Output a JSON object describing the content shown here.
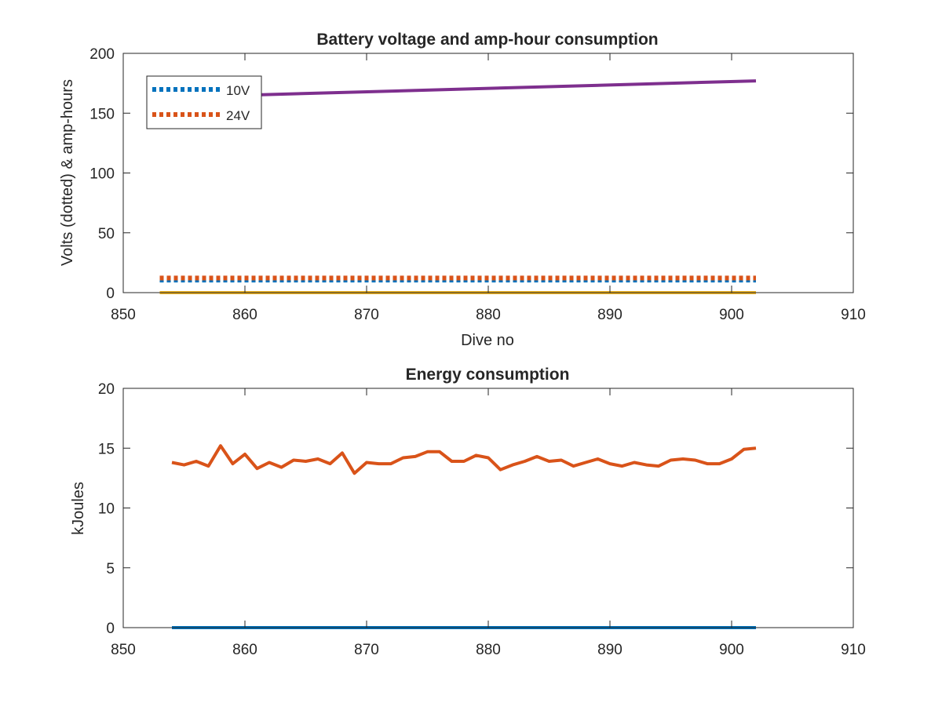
{
  "chart_data": [
    {
      "type": "line",
      "title": "Battery voltage and amp-hour consumption",
      "xlabel": "Dive no",
      "ylabel": "Volts (dotted) & amp-hours",
      "xlim": [
        850,
        910
      ],
      "ylim": [
        0,
        200
      ],
      "xticks": [
        "850",
        "860",
        "870",
        "880",
        "890",
        "900",
        "910"
      ],
      "yticks": [
        "0",
        "50",
        "100",
        "150",
        "200"
      ],
      "grid": false,
      "legend_position": "top-left",
      "series": [
        {
          "name": "10V",
          "style": "dotted",
          "color": "#0072BD",
          "x": [
            853,
            902
          ],
          "y": [
            10.5,
            10.5
          ]
        },
        {
          "name": "24V",
          "style": "dotted",
          "color": "#D95319",
          "x": [
            853,
            902
          ],
          "y": [
            12.2,
            12.2
          ]
        },
        {
          "style": "solid",
          "color": "#EDB120",
          "x": [
            853,
            902
          ],
          "y": [
            0,
            0
          ]
        },
        {
          "style": "solid",
          "color": "#7E2F8E",
          "x": [
            853,
            902
          ],
          "y": [
            163,
            177
          ]
        }
      ]
    },
    {
      "type": "line",
      "title": "Energy consumption",
      "xlabel": "",
      "ylabel": "kJoules",
      "xlim": [
        850,
        910
      ],
      "ylim": [
        0,
        20
      ],
      "xticks": [
        "850",
        "860",
        "870",
        "880",
        "890",
        "900",
        "910"
      ],
      "yticks": [
        "0",
        "5",
        "10",
        "15",
        "20"
      ],
      "grid": false,
      "series": [
        {
          "style": "solid",
          "color": "#0072BD",
          "x": [
            854,
            902
          ],
          "y": [
            0,
            0
          ]
        },
        {
          "style": "solid",
          "color": "#D95319",
          "x": [
            854,
            855,
            856,
            857,
            858,
            859,
            860,
            861,
            862,
            863,
            864,
            865,
            866,
            867,
            868,
            869,
            870,
            871,
            872,
            873,
            874,
            875,
            876,
            877,
            878,
            879,
            880,
            881,
            882,
            883,
            884,
            885,
            886,
            887,
            888,
            889,
            890,
            891,
            892,
            893,
            894,
            895,
            896,
            897,
            898,
            899,
            900,
            901,
            902
          ],
          "y": [
            13.8,
            13.6,
            13.9,
            13.5,
            15.2,
            13.7,
            14.5,
            13.3,
            13.8,
            13.4,
            14.0,
            13.9,
            14.1,
            13.7,
            14.6,
            12.9,
            13.8,
            13.7,
            13.7,
            14.2,
            14.3,
            14.7,
            14.7,
            13.9,
            13.9,
            14.4,
            14.2,
            13.2,
            13.6,
            13.9,
            14.3,
            13.9,
            14.0,
            13.5,
            13.8,
            14.1,
            13.7,
            13.5,
            13.8,
            13.6,
            13.5,
            14.0,
            14.1,
            14.0,
            13.7,
            13.7,
            14.1,
            14.9,
            15.0
          ]
        }
      ]
    }
  ]
}
